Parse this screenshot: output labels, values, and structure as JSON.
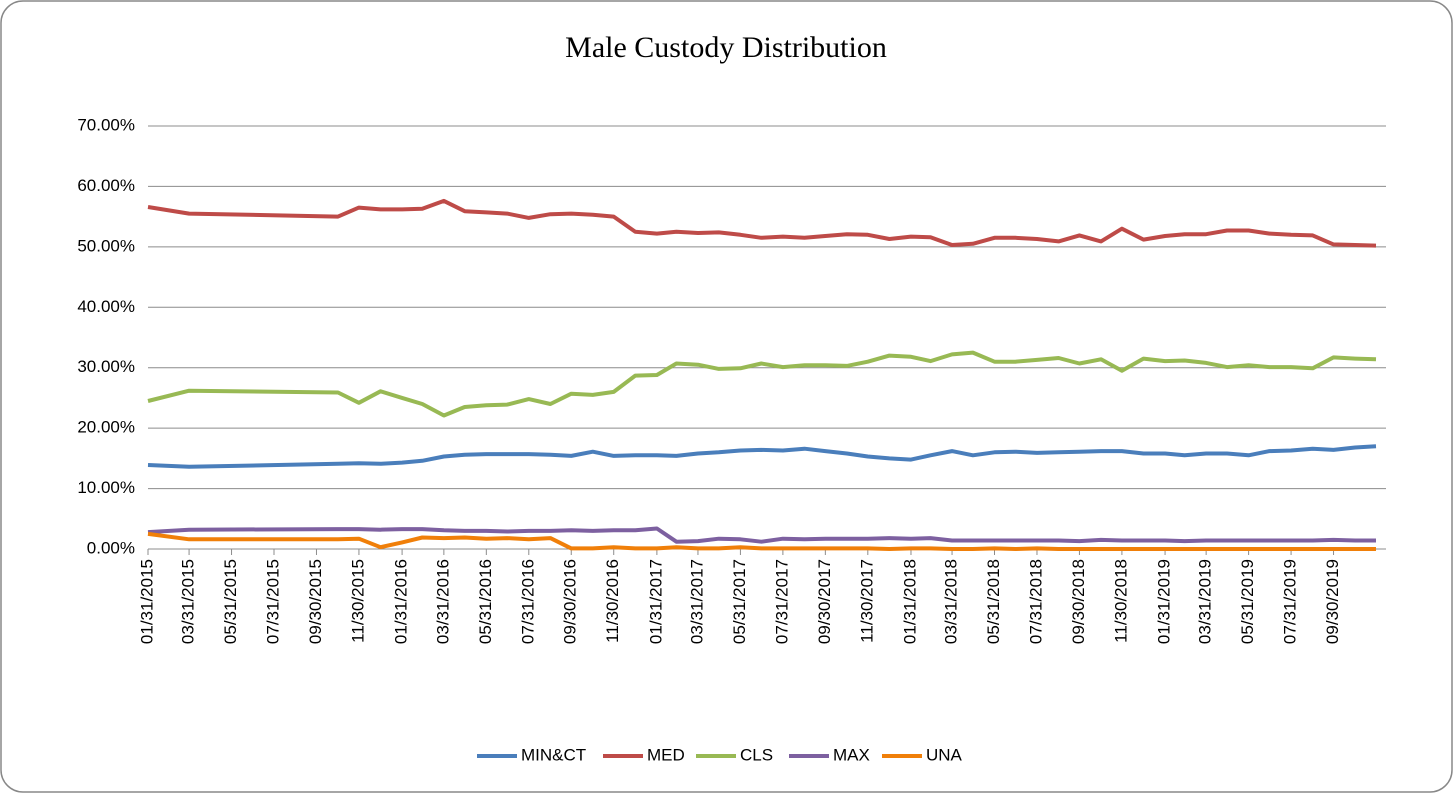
{
  "chart_data": {
    "type": "line",
    "title": "Male  Custody Distribution",
    "x": [
      "01/31/2015",
      "03/31/2015",
      "10/31/2015",
      "11/30/2015",
      "12/31/2015",
      "01/31/2016",
      "02/29/2016",
      "03/31/2016",
      "04/30/2016",
      "05/31/2016",
      "06/30/2016",
      "07/31/2016",
      "08/31/2016",
      "09/30/2016",
      "10/31/2016",
      "11/30/2016",
      "12/31/2016",
      "01/31/2017",
      "02/28/2017",
      "03/31/2017",
      "04/30/2017",
      "05/31/2017",
      "06/30/2017",
      "07/31/2017",
      "08/31/2017",
      "09/30/2017",
      "10/31/2017",
      "11/30/2017",
      "12/31/2017",
      "01/31/2018",
      "02/28/2018",
      "03/31/2018",
      "04/30/2018",
      "05/31/2018",
      "06/30/2018",
      "07/31/2018",
      "08/31/2018",
      "09/30/2018",
      "10/31/2018",
      "11/30/2018",
      "12/31/2018",
      "01/31/2019",
      "02/28/2019",
      "03/31/2019",
      "04/30/2019",
      "05/31/2019",
      "06/30/2019",
      "07/31/2019",
      "08/31/2019",
      "09/30/2019",
      "10/31/2019",
      "11/30/2019"
    ],
    "series": [
      {
        "name": "MIN&CT",
        "color": "#4a7ebb",
        "values": [
          13.9,
          13.6,
          14.1,
          14.2,
          14.1,
          14.3,
          14.6,
          15.3,
          15.6,
          15.7,
          15.7,
          15.7,
          15.6,
          15.4,
          16.1,
          15.4,
          15.5,
          15.5,
          15.4,
          15.8,
          16.0,
          16.3,
          16.4,
          16.3,
          16.6,
          16.2,
          15.8,
          15.3,
          15.0,
          14.8,
          15.5,
          16.2,
          15.5,
          16.0,
          16.1,
          15.9,
          16.0,
          16.1,
          16.2,
          16.2,
          15.8,
          15.8,
          15.5,
          15.8,
          15.8,
          15.5,
          16.2,
          16.3,
          16.6,
          16.4,
          16.8,
          17.0
        ]
      },
      {
        "name": "MED",
        "color": "#be4b48",
        "values": [
          56.6,
          55.5,
          55.0,
          56.5,
          56.2,
          56.2,
          56.3,
          57.6,
          55.9,
          55.7,
          55.5,
          54.8,
          55.4,
          55.5,
          55.3,
          55.0,
          52.5,
          52.2,
          52.5,
          52.3,
          52.4,
          52.0,
          51.5,
          51.7,
          51.5,
          51.8,
          52.1,
          52.0,
          51.3,
          51.7,
          51.6,
          50.3,
          50.5,
          51.5,
          51.5,
          51.3,
          50.9,
          51.9,
          50.9,
          53.0,
          51.2,
          51.8,
          52.1,
          52.1,
          52.7,
          52.7,
          52.2,
          52.0,
          51.9,
          50.4,
          50.3,
          50.2
        ]
      },
      {
        "name": "CLS",
        "color": "#98b954",
        "values": [
          24.5,
          26.2,
          25.9,
          24.2,
          26.1,
          25.0,
          24.0,
          22.1,
          23.5,
          23.8,
          23.9,
          24.8,
          24.0,
          25.7,
          25.5,
          26.0,
          28.7,
          28.8,
          30.7,
          30.5,
          29.8,
          29.9,
          30.7,
          30.1,
          30.4,
          30.4,
          30.3,
          31.0,
          32.0,
          31.8,
          31.1,
          32.2,
          32.5,
          31.0,
          31.0,
          31.3,
          31.6,
          30.7,
          31.4,
          29.5,
          31.5,
          31.1,
          31.2,
          30.8,
          30.1,
          30.4,
          30.1,
          30.1,
          29.9,
          31.7,
          31.5,
          31.4
        ]
      },
      {
        "name": "MAX",
        "color": "#7d60a0",
        "values": [
          2.8,
          3.2,
          3.3,
          3.3,
          3.2,
          3.3,
          3.3,
          3.1,
          3.0,
          3.0,
          2.9,
          3.0,
          3.0,
          3.1,
          3.0,
          3.1,
          3.1,
          3.4,
          1.2,
          1.3,
          1.7,
          1.6,
          1.2,
          1.7,
          1.6,
          1.7,
          1.7,
          1.7,
          1.8,
          1.7,
          1.8,
          1.4,
          1.4,
          1.4,
          1.4,
          1.4,
          1.4,
          1.3,
          1.5,
          1.4,
          1.4,
          1.4,
          1.3,
          1.4,
          1.4,
          1.4,
          1.4,
          1.4,
          1.4,
          1.5,
          1.4,
          1.4
        ]
      },
      {
        "name": "UNA",
        "color": "#f07f09",
        "values": [
          2.5,
          1.6,
          1.6,
          1.7,
          0.3,
          1.1,
          1.9,
          1.8,
          1.9,
          1.7,
          1.8,
          1.6,
          1.8,
          0.1,
          0.1,
          0.3,
          0.1,
          0.1,
          0.3,
          0.1,
          0.1,
          0.3,
          0.1,
          0.1,
          0.1,
          0.1,
          0.1,
          0.1,
          0,
          0.1,
          0.1,
          0,
          0,
          0.1,
          0,
          0.1,
          0,
          0,
          0,
          0,
          0,
          0,
          0,
          0,
          0,
          0,
          0,
          0,
          0,
          0,
          0,
          0
        ]
      }
    ],
    "xlim": [
      "01/31/2015",
      "11/30/2019"
    ],
    "xticks": [
      "01/31/2015",
      "03/31/2015",
      "05/31/2015",
      "07/31/2015",
      "09/30/2015",
      "11/30/2015",
      "01/31/2016",
      "03/31/2016",
      "05/31/2016",
      "07/31/2016",
      "09/30/2016",
      "11/30/2016",
      "01/31/2017",
      "03/31/2017",
      "05/31/2017",
      "07/31/2017",
      "09/30/2017",
      "11/30/2017",
      "01/31/2018",
      "03/31/2018",
      "05/31/2018",
      "07/31/2018",
      "09/30/2018",
      "11/30/2018",
      "01/31/2019",
      "03/31/2019",
      "05/31/2019",
      "07/31/2019",
      "09/30/2019"
    ],
    "ylim": [
      0,
      70
    ],
    "yticks": [
      {
        "value": 0,
        "label": "0.00%"
      },
      {
        "value": 10,
        "label": "10.00%"
      },
      {
        "value": 20,
        "label": "20.00%"
      },
      {
        "value": 30,
        "label": "30.00%"
      },
      {
        "value": 40,
        "label": "40.00%"
      },
      {
        "value": 50,
        "label": "50.00%"
      },
      {
        "value": 60,
        "label": "60.00%"
      },
      {
        "value": 70,
        "label": "70.00%"
      }
    ],
    "grid": true,
    "legend": "bottom"
  }
}
